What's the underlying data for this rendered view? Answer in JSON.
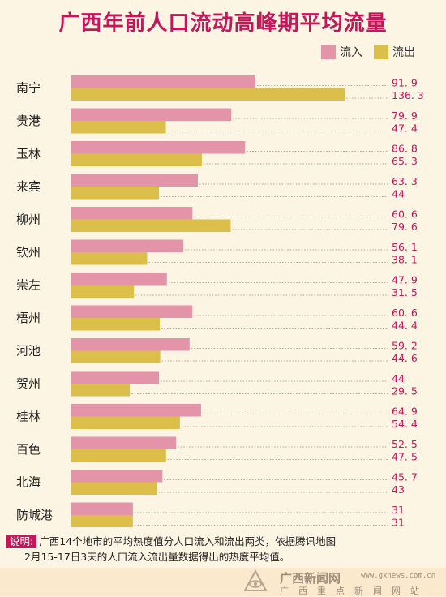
{
  "chart_data": {
    "type": "bar",
    "title": "广西年前人口流动高峰期平均流量",
    "categories": [
      "南宁",
      "贵港",
      "玉林",
      "来宾",
      "柳州",
      "钦州",
      "崇左",
      "梧州",
      "河池",
      "贺州",
      "桂林",
      "百色",
      "北海",
      "防城港"
    ],
    "series": [
      {
        "name": "流入",
        "color": "#e394a8",
        "values": [
          91.9,
          79.9,
          86.8,
          63.3,
          60.6,
          56.1,
          47.9,
          60.6,
          59.2,
          44,
          64.9,
          52.5,
          45.7,
          31
        ],
        "labels": [
          "91. 9",
          "79. 9",
          "86. 8",
          "63. 3",
          "60. 6",
          "56. 1",
          "47. 9",
          "60. 6",
          "59. 2",
          "44",
          "64. 9",
          "52. 5",
          "45. 7",
          "31"
        ]
      },
      {
        "name": "流出",
        "color": "#dcbf4b",
        "values": [
          136.3,
          47.4,
          65.3,
          44,
          79.6,
          38.1,
          31.5,
          44.4,
          44.6,
          29.5,
          54.4,
          47.5,
          43,
          31
        ],
        "labels": [
          "136. 3",
          "47. 4",
          "65. 3",
          "44",
          "79. 6",
          "38. 1",
          "31. 5",
          "44. 4",
          "44. 6",
          "29. 5",
          "54. 4",
          "47. 5",
          "43",
          "31"
        ]
      }
    ],
    "orientation": "horizontal",
    "legend": "top-right"
  },
  "note": {
    "tag": "说明:",
    "line1": "广西14个地市的平均热度值分人口流入和流出两类，依据腾讯地图",
    "line2": "2月15-17日3天的人口流入流出量数据得出的热度平均值。"
  },
  "footer": {
    "logo": "广西新闻网",
    "url": "www.gxnews.com.cn",
    "cn": "广西重点新闻网站"
  }
}
